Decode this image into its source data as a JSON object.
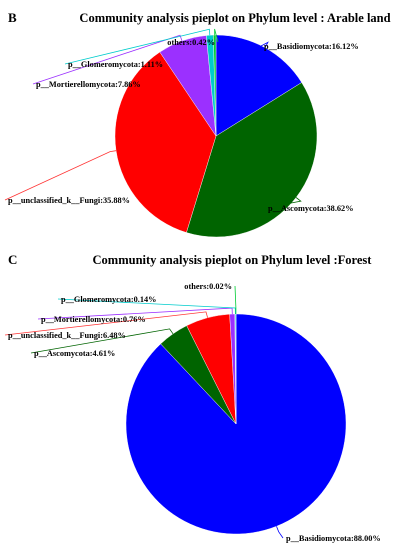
{
  "chart_data": [
    {
      "panel": "B",
      "type": "pie",
      "title": "Community analysis pieplot on Phylum level : Arable land",
      "slices": [
        {
          "label": "p__Basidiomycota:16.12%",
          "value": 16.12,
          "color": "#0000FF"
        },
        {
          "label": "p__Ascomycota:38.62%",
          "value": 38.62,
          "color": "#006400"
        },
        {
          "label": "p__unclassified_k__Fungi:35.88%",
          "value": 35.88,
          "color": "#FF0000"
        },
        {
          "label": "p__Mortierellomycota:7.86%",
          "value": 7.86,
          "color": "#9B30FF"
        },
        {
          "label": "p__Glomeromycota:1.11%",
          "value": 1.11,
          "color": "#00CCCC"
        },
        {
          "label": "others:0.42%",
          "value": 0.42,
          "color": "#00CC33"
        }
      ]
    },
    {
      "panel": "C",
      "type": "pie",
      "title": "Community analysis pieplot on Phylum level :Forest",
      "slices": [
        {
          "label": "p__Basidiomycota:88.00%",
          "value": 88.0,
          "color": "#0000FF"
        },
        {
          "label": "p__Ascomycota:4.61%",
          "value": 4.61,
          "color": "#006400"
        },
        {
          "label": "p__unclassified_k__Fungi:6.48%",
          "value": 6.48,
          "color": "#FF0000"
        },
        {
          "label": "p__Mortierellomycota:0.76%",
          "value": 0.76,
          "color": "#9B30FF"
        },
        {
          "label": "p__Glomeromycota:0.14%",
          "value": 0.14,
          "color": "#00CCCC"
        },
        {
          "label": "others:0.02%",
          "value": 0.02,
          "color": "#00CC33"
        }
      ]
    }
  ]
}
